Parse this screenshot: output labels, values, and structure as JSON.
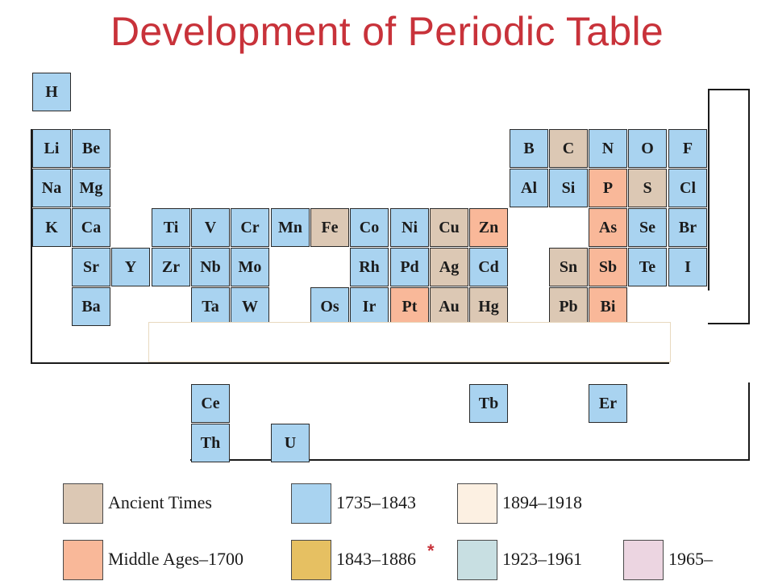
{
  "title": "Development of Periodic Table",
  "colors": {
    "ancient": "#dcc8b4",
    "middle": "#f9b899",
    "p1735": "#a9d3f0",
    "p1843": "#e6c062",
    "p1894": "#fcf0e2",
    "p1923": "#c8dfe2",
    "p1965": "#ecd5e1"
  },
  "elements": {
    "H": "H",
    "Li": "Li",
    "Be": "Be",
    "B": "B",
    "C": "C",
    "N": "N",
    "O": "O",
    "F": "F",
    "Na": "Na",
    "Mg": "Mg",
    "Al": "Al",
    "Si": "Si",
    "P": "P",
    "S": "S",
    "Cl": "Cl",
    "K": "K",
    "Ca": "Ca",
    "Ti": "Ti",
    "V": "V",
    "Cr": "Cr",
    "Mn": "Mn",
    "Fe": "Fe",
    "Co": "Co",
    "Ni": "Ni",
    "Cu": "Cu",
    "Zn": "Zn",
    "As": "As",
    "Se": "Se",
    "Br": "Br",
    "Sr": "Sr",
    "Y": "Y",
    "Zr": "Zr",
    "Nb": "Nb",
    "Mo": "Mo",
    "Rh": "Rh",
    "Pd": "Pd",
    "Ag": "Ag",
    "Cd": "Cd",
    "Sn": "Sn",
    "Sb": "Sb",
    "Te": "Te",
    "I": "I",
    "Ba": "Ba",
    "Ta": "Ta",
    "W": "W",
    "Os": "Os",
    "Ir": "Ir",
    "Pt": "Pt",
    "Au": "Au",
    "Hg": "Hg",
    "Pb": "Pb",
    "Bi": "Bi",
    "Ce": "Ce",
    "Tb": "Tb",
    "Er": "Er",
    "Th": "Th",
    "U": "U"
  },
  "legend": {
    "ancient": "Ancient Times",
    "p1735": "1735–1843",
    "p1894": "1894–1918",
    "middle": "Middle Ages–1700",
    "p1843": "1843–1886",
    "star": "*",
    "p1923": "1923–1961",
    "p1965": "1965–"
  }
}
